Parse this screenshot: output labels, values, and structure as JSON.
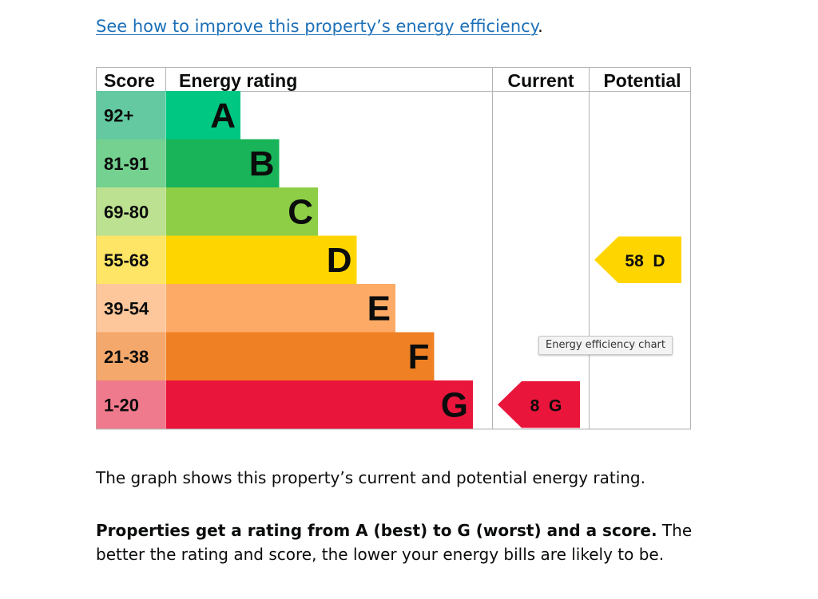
{
  "intro": {
    "link_text": "See how to improve this property’s energy efficiency",
    "trailing": "."
  },
  "chart_data": {
    "type": "table",
    "headers": {
      "score": "Score",
      "rating": "Energy rating",
      "current": "Current",
      "potential": "Potential"
    },
    "bands": [
      {
        "letter": "A",
        "range": "92+",
        "color": "#00c781",
        "score_bg": "#64c9a1"
      },
      {
        "letter": "B",
        "range": "81-91",
        "color": "#19b459",
        "score_bg": "#75d18f"
      },
      {
        "letter": "C",
        "range": "69-80",
        "color": "#8dce46",
        "score_bg": "#bce190"
      },
      {
        "letter": "D",
        "range": "55-68",
        "color": "#ffd500",
        "score_bg": "#ffe566"
      },
      {
        "letter": "E",
        "range": "39-54",
        "color": "#fcaa65",
        "score_bg": "#fdc79b"
      },
      {
        "letter": "F",
        "range": "21-38",
        "color": "#ef8023",
        "score_bg": "#f4a86b"
      },
      {
        "letter": "G",
        "range": "1-20",
        "color": "#e9153b",
        "score_bg": "#f07a8d"
      }
    ],
    "current": {
      "score": 8,
      "band": "G",
      "label": "8 G",
      "color": "#e9153b"
    },
    "potential": {
      "score": 58,
      "band": "D",
      "label": "58 D",
      "color": "#ffd500"
    }
  },
  "tooltip": {
    "text": "Energy efficiency chart"
  },
  "description": {
    "line1": "The graph shows this property’s current and potential energy rating.",
    "bold": "Properties get a rating from A (best) to G (worst) and a score.",
    "rest": " The better the rating and score, the lower your energy bills are likely to be."
  }
}
